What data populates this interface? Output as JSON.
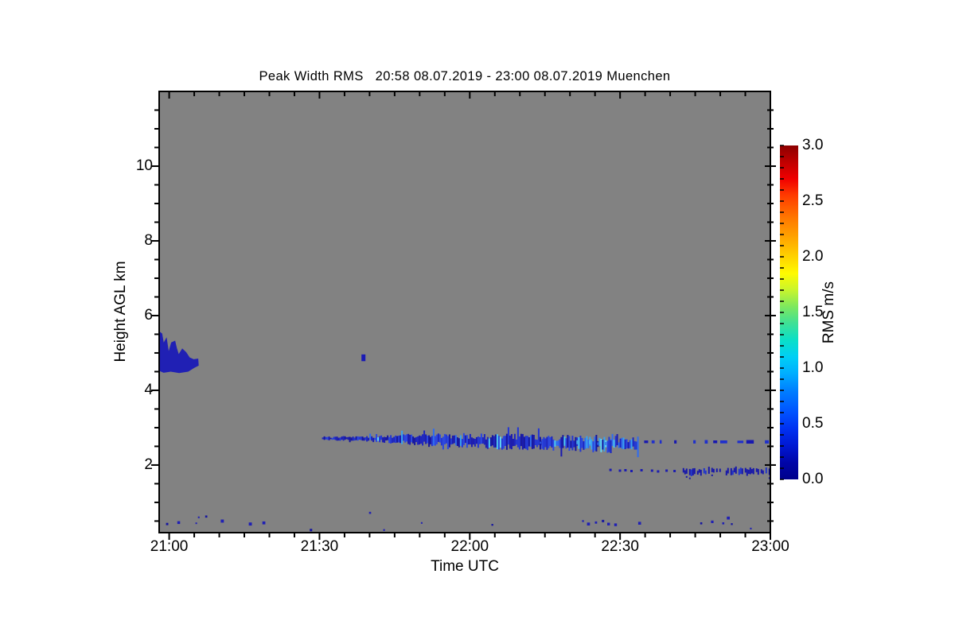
{
  "chart_data": {
    "type": "heatmap",
    "title": "Peak Width RMS   20:58 08.07.2019 - 23:00 08.07.2019 Muenchen",
    "site": "Muenchen",
    "time_span": "20:58 08.07.2019 - 23:00 08.07.2019",
    "x_axis": {
      "label": "Time UTC",
      "range_minutes": [
        1258,
        1380
      ],
      "minor_tick_step_minutes": 5,
      "major_ticks": [
        {
          "label": "21:00",
          "minutes": 1260
        },
        {
          "label": "21:30",
          "minutes": 1290
        },
        {
          "label": "22:00",
          "minutes": 1320
        },
        {
          "label": "22:30",
          "minutes": 1350
        },
        {
          "label": "23:00",
          "minutes": 1380
        }
      ]
    },
    "y_axis": {
      "label": "Height AGL km",
      "range_km": [
        0.19,
        12.0
      ],
      "minor_tick_step_km": 0.5,
      "major_ticks": [
        {
          "label": "2",
          "km": 2
        },
        {
          "label": "4",
          "km": 4
        },
        {
          "label": "6",
          "km": 6
        },
        {
          "label": "8",
          "km": 8
        },
        {
          "label": "10",
          "km": 10
        }
      ]
    },
    "colorbar": {
      "title": "RMS m/s",
      "range": [
        0.0,
        3.0
      ],
      "minor_tick_step": 0.1,
      "ticks": [
        {
          "label": "0.0",
          "value": 0.0
        },
        {
          "label": "0.5",
          "value": 0.5
        },
        {
          "label": "1.0",
          "value": 1.0
        },
        {
          "label": "1.5",
          "value": 1.5
        },
        {
          "label": "2.0",
          "value": 2.0
        },
        {
          "label": "2.5",
          "value": 2.5
        },
        {
          "label": "3.0",
          "value": 3.0
        }
      ],
      "gradient_stops": [
        {
          "value": 3.0,
          "color": "#8c0000"
        },
        {
          "value": 2.85,
          "color": "#c00000"
        },
        {
          "value": 2.7,
          "color": "#f00000"
        },
        {
          "value": 2.55,
          "color": "#ff3c00"
        },
        {
          "value": 2.35,
          "color": "#ff7800"
        },
        {
          "value": 2.15,
          "color": "#ffaa00"
        },
        {
          "value": 2.0,
          "color": "#ffd200"
        },
        {
          "value": 1.85,
          "color": "#fffa00"
        },
        {
          "value": 1.7,
          "color": "#c8f52d"
        },
        {
          "value": 1.55,
          "color": "#7de85f"
        },
        {
          "value": 1.4,
          "color": "#3ee096"
        },
        {
          "value": 1.25,
          "color": "#0adfc8"
        },
        {
          "value": 1.1,
          "color": "#00cff5"
        },
        {
          "value": 0.95,
          "color": "#00aeff"
        },
        {
          "value": 0.8,
          "color": "#0080ff"
        },
        {
          "value": 0.6,
          "color": "#0052ff"
        },
        {
          "value": 0.45,
          "color": "#0030f0"
        },
        {
          "value": 0.3,
          "color": "#0018d2"
        },
        {
          "value": 0.15,
          "color": "#0005a8"
        },
        {
          "value": 0.0,
          "color": "#00008c"
        }
      ]
    },
    "colors": {
      "no_data": "#828282",
      "frame": "#000000",
      "deep_blue": "#1717a8",
      "mid_blue": "#2233cc",
      "bright_blue": "#3a5fee",
      "cyan": "#45c8f2"
    },
    "features": {
      "cloud_patch": {
        "description": "solid low-RMS cloud echo, 4.5-5.6 km, 20:58-21:06",
        "rms_ms": 0.3,
        "polygon_t_h": [
          [
            1258.0,
            5.58
          ],
          [
            1258.6,
            5.52
          ],
          [
            1258.9,
            5.28
          ],
          [
            1259.5,
            5.42
          ],
          [
            1259.9,
            5.05
          ],
          [
            1260.4,
            5.28
          ],
          [
            1261.2,
            5.33
          ],
          [
            1261.5,
            5.15
          ],
          [
            1261.9,
            4.97
          ],
          [
            1262.6,
            5.12
          ],
          [
            1263.4,
            5.02
          ],
          [
            1264.1,
            4.88
          ],
          [
            1264.9,
            4.83
          ],
          [
            1265.8,
            4.85
          ],
          [
            1265.9,
            4.66
          ],
          [
            1265.0,
            4.6
          ],
          [
            1263.8,
            4.5
          ],
          [
            1262.0,
            4.46
          ],
          [
            1260.3,
            4.5
          ],
          [
            1258.9,
            4.47
          ],
          [
            1258.0,
            4.52
          ]
        ]
      },
      "isolated_echo": {
        "description": "small echo near 21:39 at ~4.9 km",
        "rms_ms": 0.25,
        "t_minutes": 1298.7,
        "h_top_km": 4.96,
        "h_bottom_km": 4.78
      },
      "aerosol_layer": {
        "description": "jagged layer 2.5-2.8 km from 21:31 to 22:33, brighter (higher RMS) 22:12-22:28, sparse dashes to 23:00",
        "rms_ms_range": [
          0.2,
          1.0
        ],
        "segments": [
          [
            1290.5,
            1299.0,
            2.71,
            2.71,
            3,
            5,
            0.05
          ],
          [
            1299.0,
            1312.0,
            2.71,
            2.67,
            5,
            11,
            0.15
          ],
          [
            1312.0,
            1334.0,
            2.67,
            2.6,
            11,
            15,
            0.2
          ],
          [
            1334.0,
            1348.0,
            2.6,
            2.57,
            13,
            16,
            0.55
          ],
          [
            1348.0,
            1353.5,
            2.57,
            2.57,
            9,
            12,
            0.25
          ]
        ],
        "dashes": [
          [
            1354.8,
            1355.6
          ],
          [
            1356.3,
            1356.9
          ],
          [
            1357.9,
            1358.3
          ],
          [
            1360.8,
            1361.3
          ],
          [
            1364.6,
            1365.1
          ],
          [
            1366.9,
            1367.5
          ],
          [
            1368.6,
            1369.4
          ],
          [
            1370.0,
            1371.4
          ],
          [
            1373.4,
            1374.6
          ],
          [
            1375.2,
            1376.7
          ],
          [
            1378.9,
            1379.7
          ]
        ],
        "dash_height_km": 2.62
      },
      "lower_layer": {
        "description": "thin layer ~1.8-1.9 km, specks 22:28-22:41, dashed band 22:42-23:00",
        "rms_ms": 0.2,
        "specks": [
          [
            1348.0,
            1.88
          ],
          [
            1349.9,
            1.86
          ],
          [
            1351.0,
            1.87
          ],
          [
            1352.2,
            1.85
          ],
          [
            1354.2,
            1.87
          ],
          [
            1356.3,
            1.86
          ],
          [
            1357.5,
            1.84
          ],
          [
            1359.2,
            1.86
          ],
          [
            1360.8,
            1.85
          ]
        ],
        "band": {
          "t_range": [
            1362.5,
            1380
          ],
          "h_center_km": 1.83,
          "thickness_px": 8
        }
      },
      "near_ground_specks": {
        "description": "scattered noise echoes below 0.8 km",
        "rms_ms": 0.3,
        "points": [
          [
            1259.6,
            0.42
          ],
          [
            1261.9,
            0.46
          ],
          [
            1265.4,
            0.44
          ],
          [
            1265.9,
            0.6
          ],
          [
            1267.4,
            0.62
          ],
          [
            1270.6,
            0.5
          ],
          [
            1276.2,
            0.42
          ],
          [
            1278.9,
            0.45
          ],
          [
            1288.3,
            0.26
          ],
          [
            1300.1,
            0.72
          ],
          [
            1302.9,
            0.26
          ],
          [
            1310.4,
            0.45
          ],
          [
            1324.5,
            0.4
          ],
          [
            1342.6,
            0.5
          ],
          [
            1343.7,
            0.42
          ],
          [
            1345.2,
            0.46
          ],
          [
            1346.6,
            0.5
          ],
          [
            1347.7,
            0.42
          ],
          [
            1349.1,
            0.4
          ],
          [
            1353.9,
            0.44
          ],
          [
            1366.2,
            0.44
          ],
          [
            1368.4,
            0.48
          ],
          [
            1370.6,
            0.44
          ],
          [
            1371.6,
            0.58
          ],
          [
            1372.3,
            0.42
          ],
          [
            1376.1,
            0.3
          ]
        ]
      }
    }
  }
}
